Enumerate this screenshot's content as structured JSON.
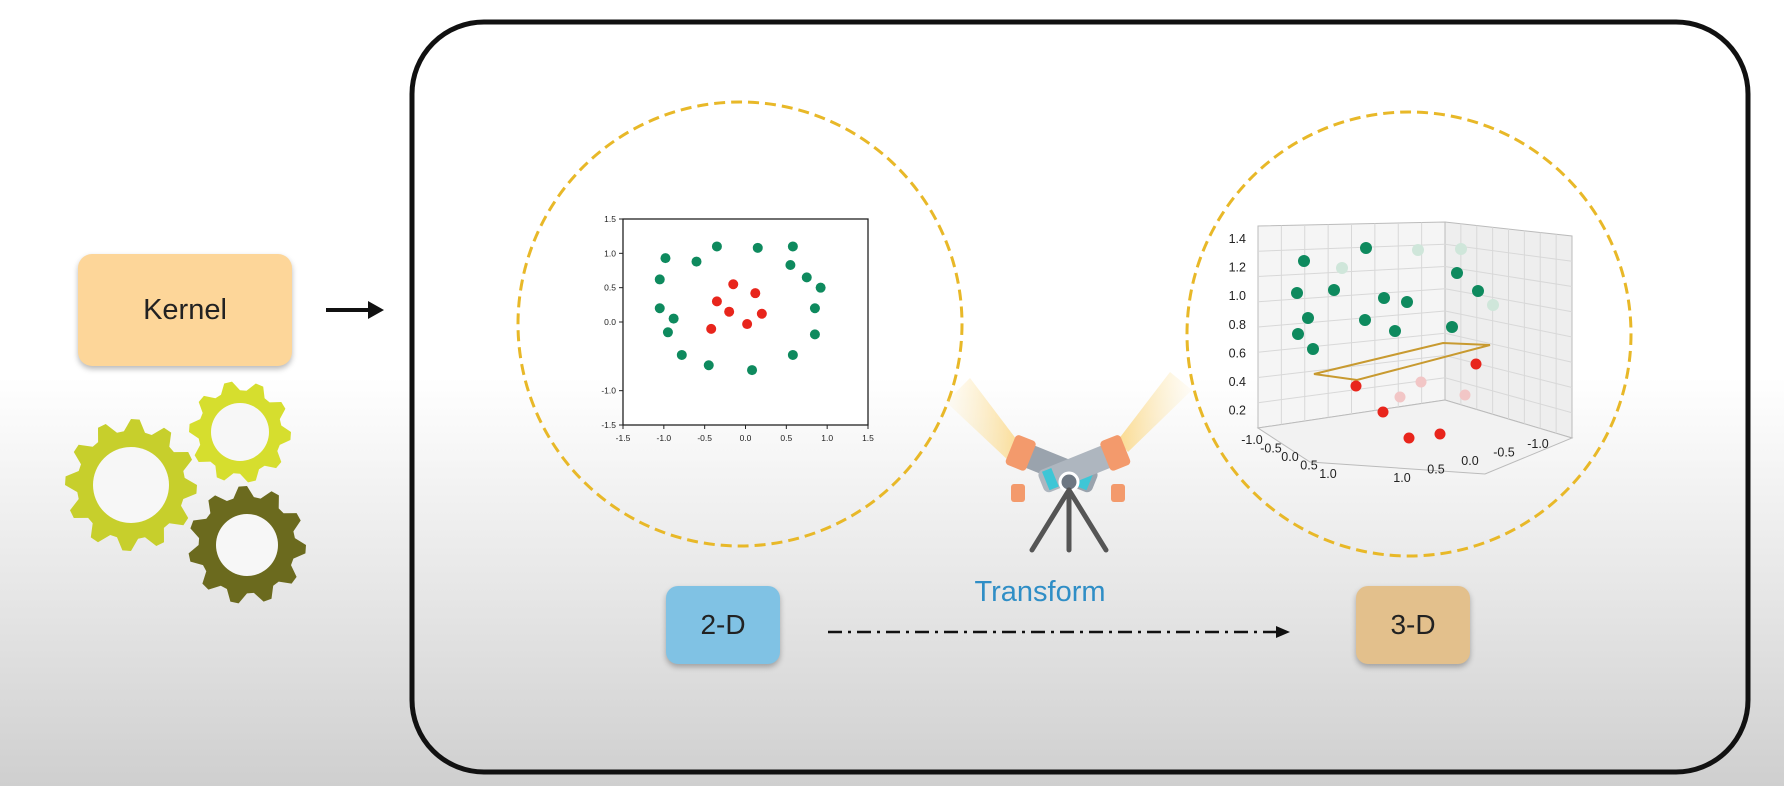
{
  "kernel": {
    "label": "Kernel"
  },
  "transform": {
    "label": "Transform",
    "from_label": "2-D",
    "to_label": "3-D"
  },
  "colors": {
    "class_outer": "#0e8a5e",
    "class_inner": "#e8251c",
    "circle_border": "#e8b828",
    "kernel_box": "#fdd699",
    "box_2d": "#80c2e4",
    "box_3d": "#e3c08c",
    "transform_text": "#2f8ec6",
    "gear_light": "#d6de2e",
    "gear_mid": "#c7cf2c",
    "gear_dark": "#6b6a1e"
  },
  "icons": [
    "gear-icon",
    "gear-icon",
    "gear-icon",
    "arrow-right-icon",
    "telescope-icon",
    "dash-dot-arrow-icon"
  ],
  "chart_data": [
    {
      "type": "scatter",
      "xlim": [
        -1.5,
        1.5
      ],
      "ylim": [
        -1.5,
        1.5
      ],
      "xticks": [
        "-1.5",
        "-1.0",
        "-0.5",
        "0.0",
        "0.5",
        "1.0",
        "1.5"
      ],
      "yticks": [
        "1.5",
        "1.0",
        "0.5",
        "0.0",
        "-1.0",
        "-1.5"
      ],
      "series": [
        {
          "color": "#0e8a5e",
          "points": [
            [
              -0.98,
              0.93
            ],
            [
              -0.6,
              0.88
            ],
            [
              -0.35,
              1.1
            ],
            [
              0.15,
              1.08
            ],
            [
              0.58,
              1.1
            ],
            [
              0.55,
              0.83
            ],
            [
              0.75,
              0.65
            ],
            [
              0.92,
              0.5
            ],
            [
              -1.05,
              0.62
            ],
            [
              -1.05,
              0.2
            ],
            [
              -0.88,
              0.05
            ],
            [
              -0.95,
              -0.15
            ],
            [
              0.85,
              0.2
            ],
            [
              0.85,
              -0.18
            ],
            [
              -0.78,
              -0.48
            ],
            [
              -0.45,
              -0.63
            ],
            [
              0.58,
              -0.48
            ],
            [
              0.08,
              -0.7
            ]
          ]
        },
        {
          "color": "#e8251c",
          "points": [
            [
              -0.15,
              0.55
            ],
            [
              0.12,
              0.42
            ],
            [
              -0.35,
              0.3
            ],
            [
              -0.2,
              0.15
            ],
            [
              0.2,
              0.12
            ],
            [
              0.02,
              -0.03
            ],
            [
              -0.42,
              -0.1
            ]
          ]
        }
      ]
    },
    {
      "type": "scatter",
      "zticks": [
        "1.4",
        "1.2",
        "1.0",
        "0.8",
        "0.6",
        "0.4",
        "0.2"
      ],
      "xticks": [
        "-1.0",
        "-0.5",
        "0.0",
        "0.5",
        "1.0"
      ],
      "yticks": [
        "1.0",
        "0.5",
        "0.0",
        "-0.5",
        "-1.0"
      ],
      "series": [
        {
          "color": "#0e8a5e"
        },
        {
          "color": "#e8251c"
        }
      ]
    }
  ]
}
